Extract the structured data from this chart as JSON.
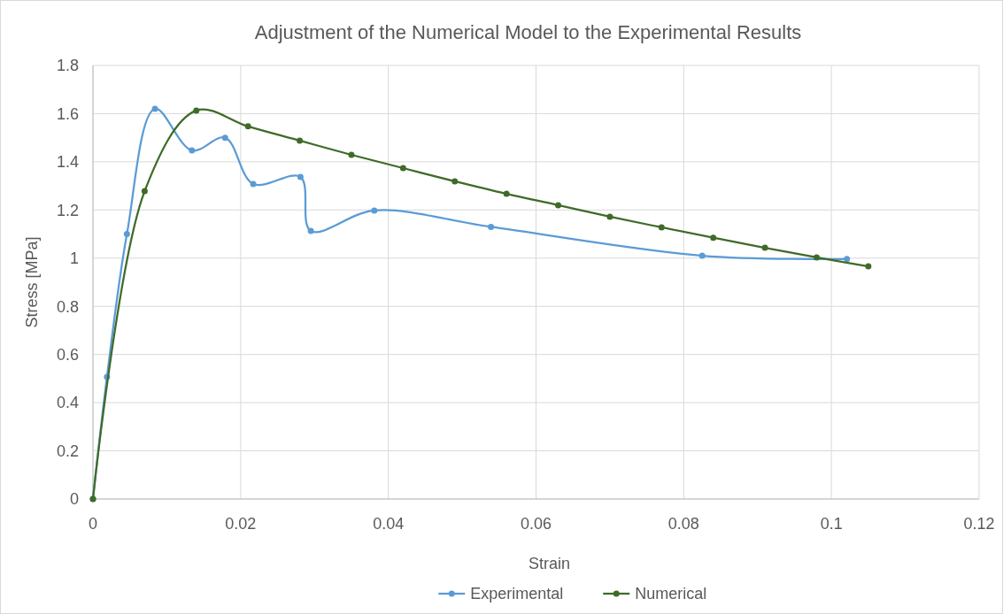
{
  "chart_data": {
    "type": "line",
    "title": "Adjustment of the Numerical Model to the Experimental Results",
    "xlabel": "Strain",
    "ylabel": "Stress [MPa]",
    "xlim": [
      0,
      0.12
    ],
    "xticks": [
      0,
      0.02,
      0.04,
      0.06,
      0.08,
      0.1,
      0.12
    ],
    "ylim": [
      0,
      1.8
    ],
    "yticks": [
      0,
      0.2,
      0.4,
      0.6,
      0.8,
      1,
      1.2,
      1.4,
      1.6,
      1.8
    ],
    "grid": true,
    "legend": "bottom",
    "marker": "circle",
    "line_style": "solid",
    "series": [
      {
        "name": "Experimental",
        "color": "#5b9bd5",
        "x": [
          0,
          0.0019,
          0.0046,
          0.0084,
          0.0134,
          0.0179,
          0.0217,
          0.0281,
          0.0295,
          0.0381,
          0.0539,
          0.0825,
          0.1021
        ],
        "values": [
          0,
          0.507,
          1.1,
          1.62,
          1.447,
          1.5,
          1.308,
          1.337,
          1.113,
          1.198,
          1.13,
          1.01,
          0.996
        ]
      },
      {
        "name": "Numerical",
        "color": "#3f6b28",
        "x": [
          0,
          0.007,
          0.014,
          0.021,
          0.028,
          0.035,
          0.042,
          0.049,
          0.056,
          0.063,
          0.07,
          0.077,
          0.084,
          0.091,
          0.098,
          0.105
        ],
        "values": [
          0,
          1.278,
          1.613,
          1.547,
          1.488,
          1.429,
          1.374,
          1.319,
          1.267,
          1.22,
          1.172,
          1.128,
          1.085,
          1.043,
          1.003,
          0.966
        ]
      }
    ]
  }
}
